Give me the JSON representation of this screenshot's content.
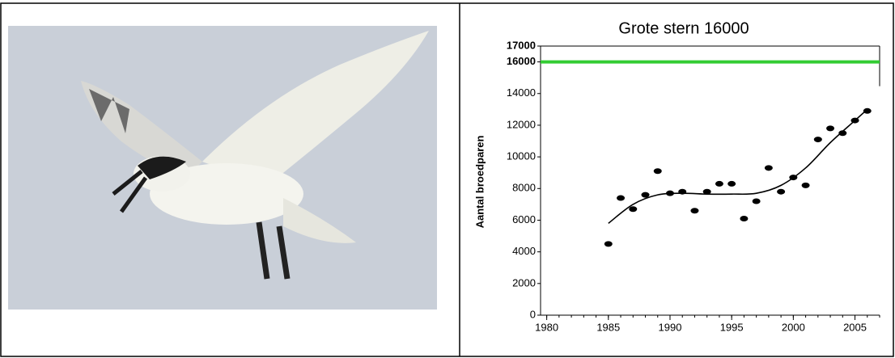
{
  "chart_data": {
    "type": "scatter",
    "title": "Grote stern 16000",
    "y_label": "Aantal broedparen",
    "x": [
      1985,
      1986,
      1987,
      1988,
      1989,
      1990,
      1991,
      1992,
      1993,
      1994,
      1995,
      1996,
      1997,
      1998,
      1999,
      2000,
      2001,
      2002,
      2003,
      2004,
      2005,
      2006
    ],
    "values": [
      4500,
      7400,
      6700,
      7600,
      9100,
      7700,
      7800,
      6600,
      7800,
      8300,
      8300,
      6100,
      7200,
      9300,
      7800,
      8700,
      8200,
      11100,
      11800,
      11500,
      12300,
      12900
    ],
    "color": "#000000",
    "trend": {
      "x": [
        1985,
        1987,
        1989,
        1991,
        1993,
        1995,
        1997,
        1999,
        2001,
        2003,
        2005,
        2006
      ],
      "values": [
        5800,
        7000,
        7600,
        7700,
        7650,
        7650,
        7700,
        8200,
        9300,
        10900,
        12300,
        13000
      ],
      "color": "#000000"
    },
    "reference_line": {
      "value": 16000,
      "color": "#33cc33"
    },
    "xlim": [
      1979.5,
      2007
    ],
    "xticks": [
      1980,
      1985,
      1990,
      1995,
      2000,
      2005
    ],
    "xminor_step": 1,
    "ylim": [
      0,
      17000
    ],
    "yticks": [
      0,
      2000,
      4000,
      6000,
      8000,
      10000,
      12000,
      14000,
      16000,
      17000
    ],
    "yticks_bold": [
      false,
      false,
      false,
      false,
      false,
      false,
      false,
      false,
      true,
      true
    ]
  }
}
